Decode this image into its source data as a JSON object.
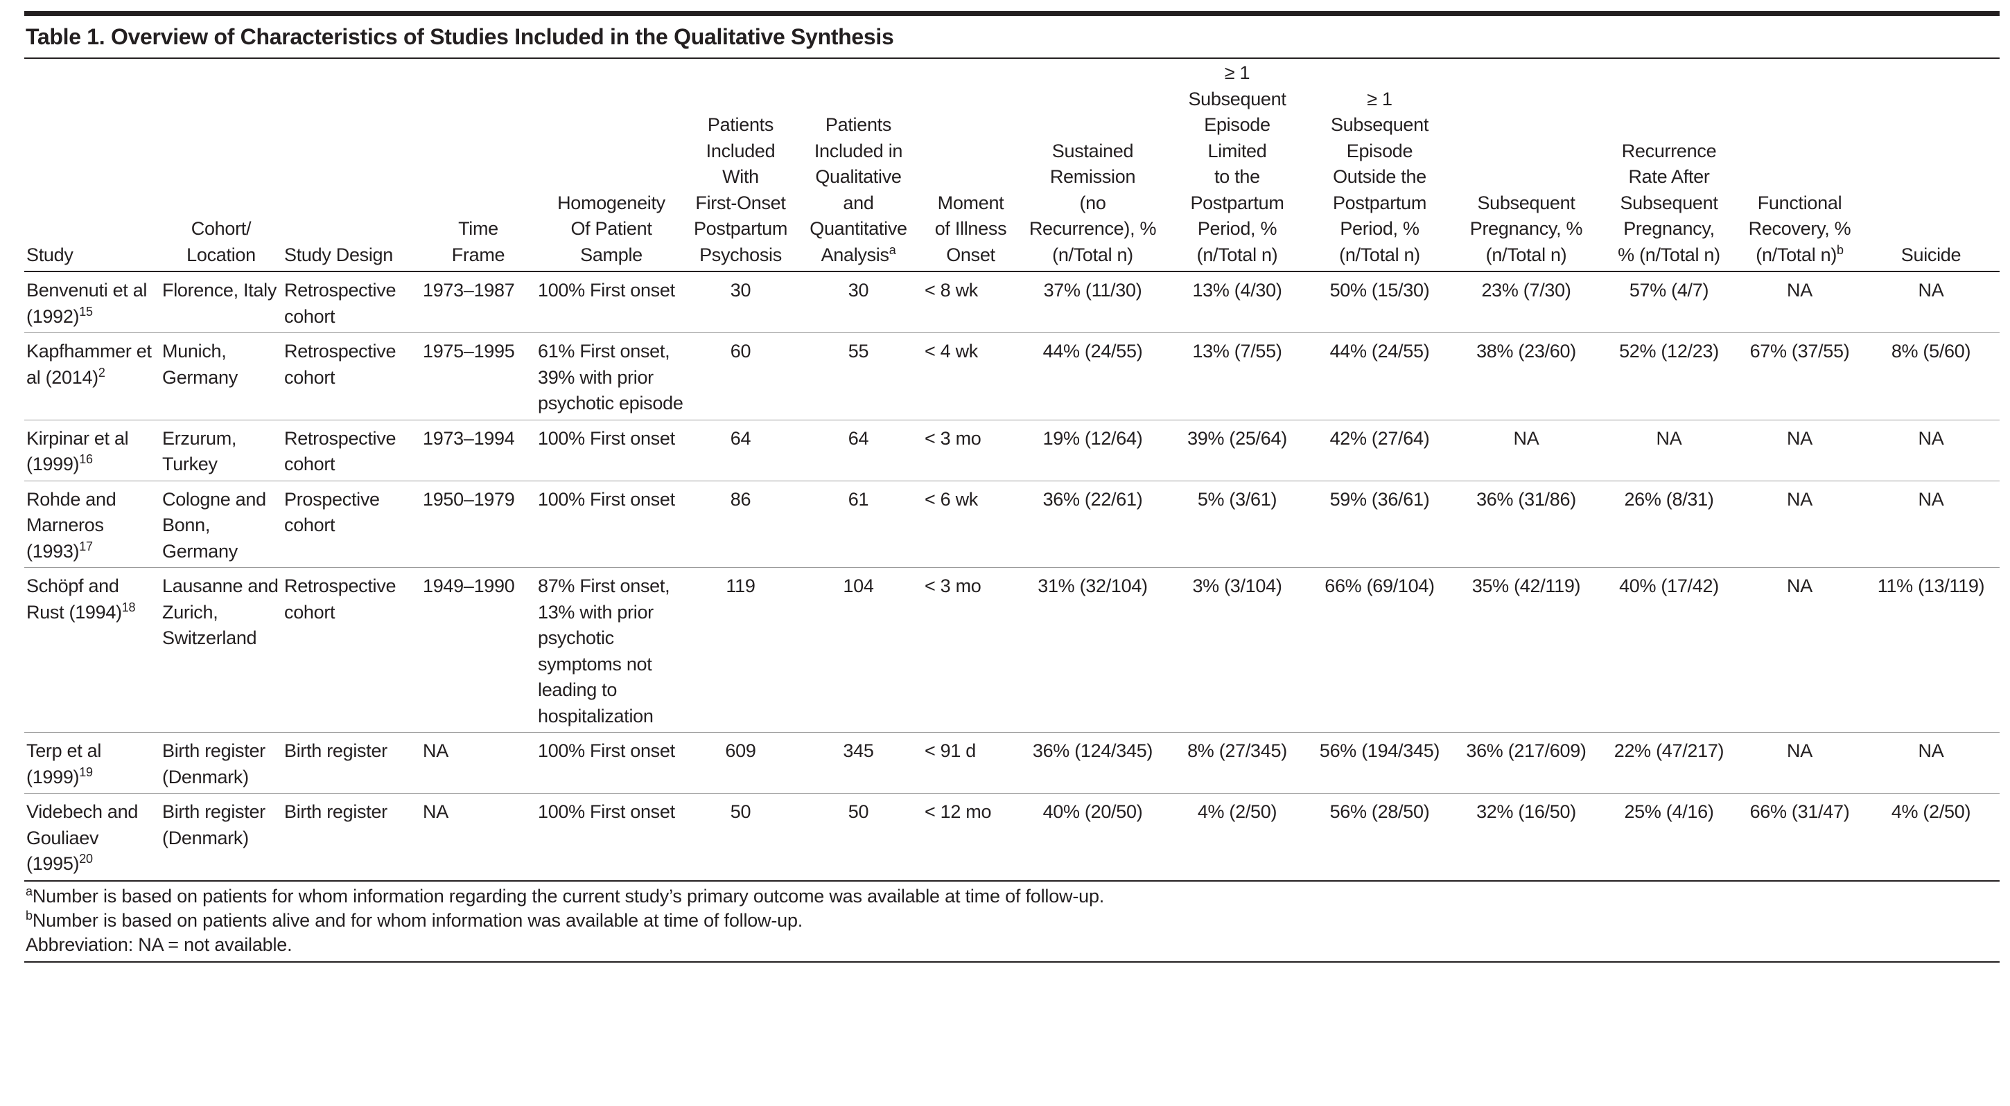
{
  "title": "Table 1. Overview of Characteristics of Studies Included in the Qualitative Synthesis",
  "table": {
    "columns": [
      {
        "lines": [
          "Study"
        ]
      },
      {
        "lines": [
          "Cohort/",
          "Location"
        ]
      },
      {
        "lines": [
          "Study Design"
        ]
      },
      {
        "lines": [
          "Time",
          "Frame"
        ]
      },
      {
        "lines": [
          "Homogeneity",
          "Of Patient",
          "Sample"
        ]
      },
      {
        "lines": [
          "Patients",
          "Included",
          "With",
          "First-Onset",
          "Postpartum",
          "Psychosis"
        ]
      },
      {
        "lines": [
          "Patients",
          "Included in",
          "Qualitative",
          "and",
          "Quantitative",
          "Analysis"
        ],
        "sup": "a"
      },
      {
        "lines": [
          "Moment",
          "of Illness",
          "Onset"
        ]
      },
      {
        "lines": [
          "Sustained",
          "Remission",
          "(no",
          "Recurrence), %",
          "(n/Total n)"
        ]
      },
      {
        "lines": [
          "≥ 1",
          "Subsequent",
          "Episode",
          "Limited",
          "to the",
          "Postpartum",
          "Period, %",
          "(n/Total n)"
        ]
      },
      {
        "lines": [
          "≥ 1",
          "Subsequent",
          "Episode",
          "Outside the",
          "Postpartum",
          "Period, %",
          "(n/Total n)"
        ]
      },
      {
        "lines": [
          "Subsequent",
          "Pregnancy, %",
          "(n/Total n)"
        ]
      },
      {
        "lines": [
          "Recurrence",
          "Rate After",
          "Subsequent",
          "Pregnancy,",
          "% (n/Total n)"
        ]
      },
      {
        "lines": [
          "Functional",
          "Recovery, %",
          "(n/Total n)"
        ],
        "sup": "b"
      },
      {
        "lines": [
          "Suicide"
        ]
      }
    ],
    "rows": [
      [
        {
          "text": "Benvenuti et al (1992)",
          "sup": "15"
        },
        "Florence, Italy",
        "Retrospective cohort",
        "1973–1987",
        "100% First onset",
        "30",
        "30",
        "< 8 wk",
        "37% (11/30)",
        "13% (4/30)",
        "50% (15/30)",
        "23% (7/30)",
        "57% (4/7)",
        "NA",
        "NA"
      ],
      [
        {
          "text": "Kapfhammer et al (2014)",
          "sup": "2"
        },
        "Munich, Germany",
        "Retrospective cohort",
        "1975–1995",
        {
          "lines": [
            "61% First onset,",
            "39% with prior psychotic episode"
          ]
        },
        "60",
        "55",
        "< 4 wk",
        "44% (24/55)",
        "13% (7/55)",
        "44% (24/55)",
        "38% (23/60)",
        "52% (12/23)",
        "67% (37/55)",
        "8% (5/60)"
      ],
      [
        {
          "text": "Kirpinar et al (1999)",
          "sup": "16"
        },
        "Erzurum, Turkey",
        "Retrospective cohort",
        "1973–1994",
        "100% First onset",
        "64",
        "64",
        "< 3 mo",
        "19% (12/64)",
        "39% (25/64)",
        "42% (27/64)",
        "NA",
        "NA",
        "NA",
        "NA"
      ],
      [
        {
          "text": "Rohde and Marneros (1993)",
          "sup": "17"
        },
        "Cologne and Bonn, Germany",
        "Prospective cohort",
        "1950–1979",
        "100% First onset",
        "86",
        "61",
        "< 6 wk",
        "36% (22/61)",
        "5% (3/61)",
        "59% (36/61)",
        "36% (31/86)",
        "26% (8/31)",
        "NA",
        "NA"
      ],
      [
        {
          "text": "Schöpf and Rust (1994)",
          "sup": "18"
        },
        "Lausanne and Zurich, Switzerland",
        "Retrospective cohort",
        "1949–1990",
        {
          "lines": [
            "87% First onset,",
            "13% with prior psychotic symptoms not leading to hospitalization"
          ]
        },
        "119",
        "104",
        "< 3 mo",
        "31% (32/104)",
        "3% (3/104)",
        "66% (69/104)",
        "35% (42/119)",
        "40% (17/42)",
        "NA",
        "11% (13/119)"
      ],
      [
        {
          "text": "Terp et al (1999)",
          "sup": "19"
        },
        "Birth register (Denmark)",
        "Birth register",
        "NA",
        "100% First onset",
        "609",
        "345",
        "< 91 d",
        "36% (124/345)",
        "8% (27/345)",
        "56% (194/345)",
        "36% (217/609)",
        "22% (47/217)",
        "NA",
        "NA"
      ],
      [
        {
          "text": "Videbech and Gouliaev (1995)",
          "sup": "20"
        },
        "Birth register (Denmark)",
        "Birth register",
        "NA",
        "100% First onset",
        "50",
        "50",
        "< 12 mo",
        "40% (20/50)",
        "4% (2/50)",
        "56% (28/50)",
        "32% (16/50)",
        "25% (4/16)",
        "66% (31/47)",
        "4% (2/50)"
      ]
    ]
  },
  "footnotes": [
    {
      "sup": "a",
      "text": "Number is based on patients for whom information regarding the current study’s primary outcome was available at time of follow-up."
    },
    {
      "sup": "b",
      "text": "Number is based on patients alive and for whom information was available at time of follow-up."
    },
    {
      "text": "Abbreviation: NA = not available."
    }
  ]
}
